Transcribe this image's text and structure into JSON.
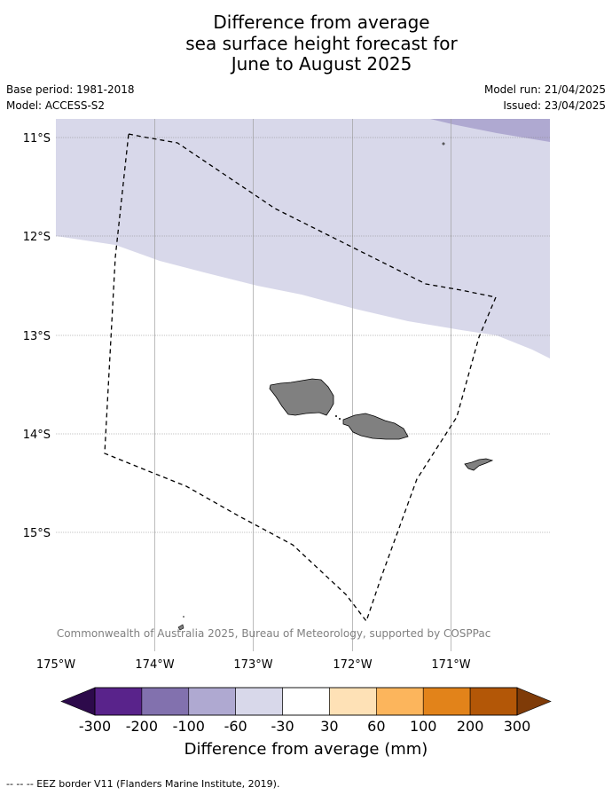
{
  "title": {
    "line1": "Difference from average",
    "line2": "sea surface height forecast for",
    "line3": "June to August 2025"
  },
  "meta": {
    "base_period": "Base period: 1981-2018",
    "model": "Model: ACCESS-S2",
    "model_run": "Model run: 21/04/2025",
    "issued": "Issued: 23/04/2025"
  },
  "map": {
    "lat_labels": [
      "11°S",
      "12°S",
      "13°S",
      "14°S",
      "15°S"
    ],
    "lon_labels": [
      "175°W",
      "174°W",
      "173°W",
      "172°W",
      "171°W"
    ],
    "copyright": "© Commonwealth of Australia 2025, Bureau of Meteorology, supported by COSPPac",
    "land_color": "#808080",
    "eez_line_style": "dashed"
  },
  "colorbar": {
    "title": "Difference from average (mm)",
    "ticks": [
      "-300",
      "-200",
      "-100",
      "-60",
      "-30",
      "30",
      "60",
      "100",
      "200",
      "300"
    ],
    "bins": [
      {
        "from": "-300",
        "to": "-200",
        "color": "#59238b"
      },
      {
        "from": "-200",
        "to": "-100",
        "color": "#8271ae"
      },
      {
        "from": "-100",
        "to": "-60",
        "color": "#afa9d1"
      },
      {
        "from": "-60",
        "to": "-30",
        "color": "#d8d8ea"
      },
      {
        "from": "-30",
        "to": "30",
        "color": "#ffffff"
      },
      {
        "from": "30",
        "to": "60",
        "color": "#fee1b6"
      },
      {
        "from": "60",
        "to": "100",
        "color": "#fcb55c"
      },
      {
        "from": "100",
        "to": "200",
        "color": "#e2831a"
      },
      {
        "from": "200",
        "to": "300",
        "color": "#b35707"
      }
    ],
    "extend_low_color": "#2d0a4b",
    "extend_high_color": "#7f3b08"
  },
  "footer": "--  --  -- EEZ border V11 (Flanders Marine Institute, 2019)."
}
